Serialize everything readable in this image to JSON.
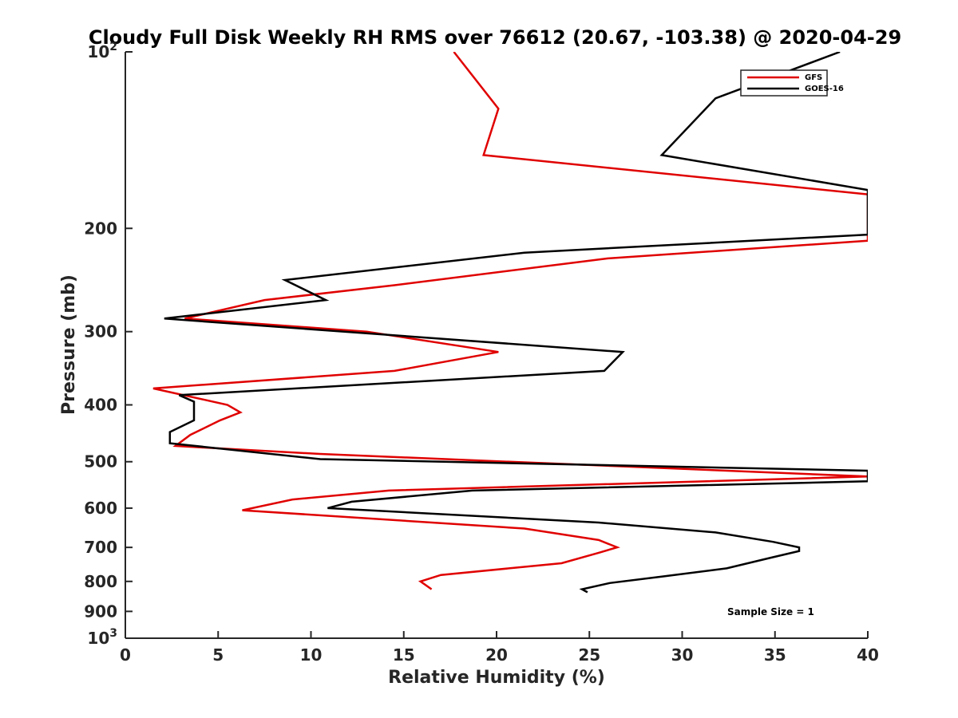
{
  "chart_data": {
    "type": "line",
    "title": "Cloudy Full Disk Weekly RH RMS over 76612 (20.67, -103.38) @ 2020-04-29",
    "xlabel": "Relative Humidity (%)",
    "ylabel": "Pressure (mb)",
    "xlim": [
      0,
      40
    ],
    "ylim": [
      100,
      1000
    ],
    "yscale": "log",
    "y_reversed": true,
    "xticks": [
      0,
      5,
      10,
      15,
      20,
      25,
      30,
      35,
      40
    ],
    "xtick_labels": [
      "0",
      "5",
      "10",
      "15",
      "20",
      "25",
      "30",
      "35",
      "40"
    ],
    "yticks": [
      100,
      200,
      300,
      400,
      500,
      600,
      700,
      800,
      900,
      1000
    ],
    "ytick_labels": [
      {
        "base": "10",
        "exp": "2"
      },
      {
        "base": "200",
        "exp": ""
      },
      {
        "base": "300",
        "exp": ""
      },
      {
        "base": "400",
        "exp": ""
      },
      {
        "base": "500",
        "exp": ""
      },
      {
        "base": "600",
        "exp": ""
      },
      {
        "base": "700",
        "exp": ""
      },
      {
        "base": "800",
        "exp": ""
      },
      {
        "base": "900",
        "exp": ""
      },
      {
        "base": "10",
        "exp": "3"
      }
    ],
    "legend_position": "top-right",
    "annotation": "Sample Size = 1",
    "series": [
      {
        "name": "GFS",
        "color": "#e00000",
        "points": [
          [
            17.7,
            100
          ],
          [
            20.1,
            125
          ],
          [
            19.3,
            150
          ],
          [
            40.0,
            175
          ],
          [
            40.0,
            210
          ],
          [
            26.0,
            225
          ],
          [
            14.5,
            250
          ],
          [
            7.5,
            265
          ],
          [
            3.2,
            285
          ],
          [
            13.0,
            300
          ],
          [
            20.1,
            325
          ],
          [
            14.5,
            350
          ],
          [
            1.5,
            375
          ],
          [
            5.5,
            400
          ],
          [
            6.2,
            412
          ],
          [
            5.1,
            425
          ],
          [
            3.5,
            450
          ],
          [
            2.7,
            470
          ],
          [
            10.5,
            485
          ],
          [
            40.0,
            530
          ],
          [
            14.2,
            560
          ],
          [
            9.0,
            580
          ],
          [
            6.3,
            605
          ],
          [
            21.5,
            650
          ],
          [
            25.5,
            680
          ],
          [
            26.5,
            700
          ],
          [
            25.5,
            715
          ],
          [
            23.5,
            745
          ],
          [
            17.0,
            780
          ],
          [
            15.9,
            800
          ],
          [
            16.5,
            825
          ]
        ]
      },
      {
        "name": "GOES-16",
        "color": "#000000",
        "points": [
          [
            38.5,
            100
          ],
          [
            31.8,
            120
          ],
          [
            28.9,
            150
          ],
          [
            40.0,
            172
          ],
          [
            40.0,
            205
          ],
          [
            21.5,
            220
          ],
          [
            8.6,
            245
          ],
          [
            10.8,
            265
          ],
          [
            2.1,
            285
          ],
          [
            26.8,
            325
          ],
          [
            25.8,
            350
          ],
          [
            2.9,
            385
          ],
          [
            3.7,
            395
          ],
          [
            3.7,
            425
          ],
          [
            2.4,
            445
          ],
          [
            2.4,
            465
          ],
          [
            10.5,
            495
          ],
          [
            40.0,
            518
          ],
          [
            40.0,
            540
          ],
          [
            18.7,
            560
          ],
          [
            12.2,
            585
          ],
          [
            10.9,
            600
          ],
          [
            25.5,
            635
          ],
          [
            31.8,
            660
          ],
          [
            34.9,
            685
          ],
          [
            36.3,
            700
          ],
          [
            36.3,
            710
          ],
          [
            34.7,
            730
          ],
          [
            32.4,
            760
          ],
          [
            28.9,
            785
          ],
          [
            26.1,
            805
          ],
          [
            24.6,
            825
          ],
          [
            24.9,
            835
          ]
        ]
      }
    ]
  }
}
